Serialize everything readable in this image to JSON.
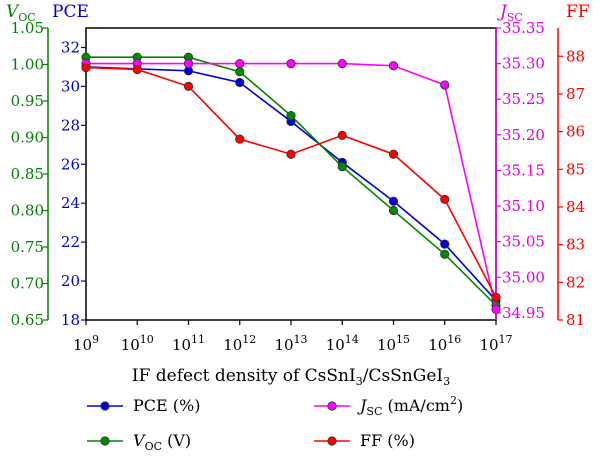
{
  "chart_data": {
    "type": "line",
    "x": [
      "10^9",
      "10^10",
      "10^11",
      "10^12",
      "10^13",
      "10^14",
      "10^15",
      "10^16",
      "10^17"
    ],
    "xlabel": {
      "prefix": "IF defect density of CsSnI",
      "sub1": "3",
      "mid": "/CsSnGeI",
      "sub2": "3"
    },
    "axes": {
      "pce": {
        "label": "PCE",
        "min": 18,
        "max": 33,
        "ticks": [
          "18",
          "20",
          "22",
          "24",
          "26",
          "28",
          "30",
          "32"
        ],
        "color": "#0000cc"
      },
      "voc": {
        "label": "V",
        "sub": "OC",
        "min": 0.65,
        "max": 1.05,
        "ticks": [
          "0.65",
          "0.70",
          "0.75",
          "0.80",
          "0.85",
          "0.90",
          "0.95",
          "1.00",
          "1.05"
        ],
        "color": "#008000"
      },
      "jsc": {
        "label": "J",
        "sub": "SC",
        "min": 34.94,
        "max": 35.35,
        "ticks": [
          "34.95",
          "35.00",
          "35.05",
          "35.10",
          "35.15",
          "35.20",
          "35.25",
          "35.30",
          "35.35"
        ],
        "color": "#e000e0"
      },
      "ff": {
        "label": "FF",
        "min": 81,
        "max": 88.75,
        "ticks": [
          "81",
          "82",
          "83",
          "84",
          "85",
          "86",
          "87",
          "88"
        ],
        "color": "#ff0000"
      }
    },
    "series": [
      {
        "name": "PCE (%)",
        "axis": "pce",
        "color": "#0000dd",
        "values": [
          31.0,
          30.9,
          30.8,
          30.2,
          28.2,
          26.1,
          24.1,
          21.9,
          19.0
        ]
      },
      {
        "name": "V",
        "sub": "OC",
        "suffix": " (V)",
        "axis": "voc",
        "color": "#008800",
        "values": [
          1.01,
          1.01,
          1.01,
          0.99,
          0.93,
          0.86,
          0.8,
          0.74,
          0.67
        ]
      },
      {
        "name": "J",
        "sub": "SC",
        "suffix": " (mA/cm",
        "sup": "2",
        "tail": ")",
        "axis": "jsc",
        "color": "#ff00ff",
        "values": [
          35.3,
          35.3,
          35.3,
          35.3,
          35.3,
          35.3,
          35.297,
          35.27,
          34.955
        ]
      },
      {
        "name": "FF (%)",
        "axis": "ff",
        "color": "#ff0000",
        "values": [
          87.7,
          87.65,
          87.2,
          85.8,
          85.4,
          85.9,
          85.4,
          84.2,
          81.6
        ]
      }
    ],
    "legend_position": "bottom",
    "grid": false
  }
}
